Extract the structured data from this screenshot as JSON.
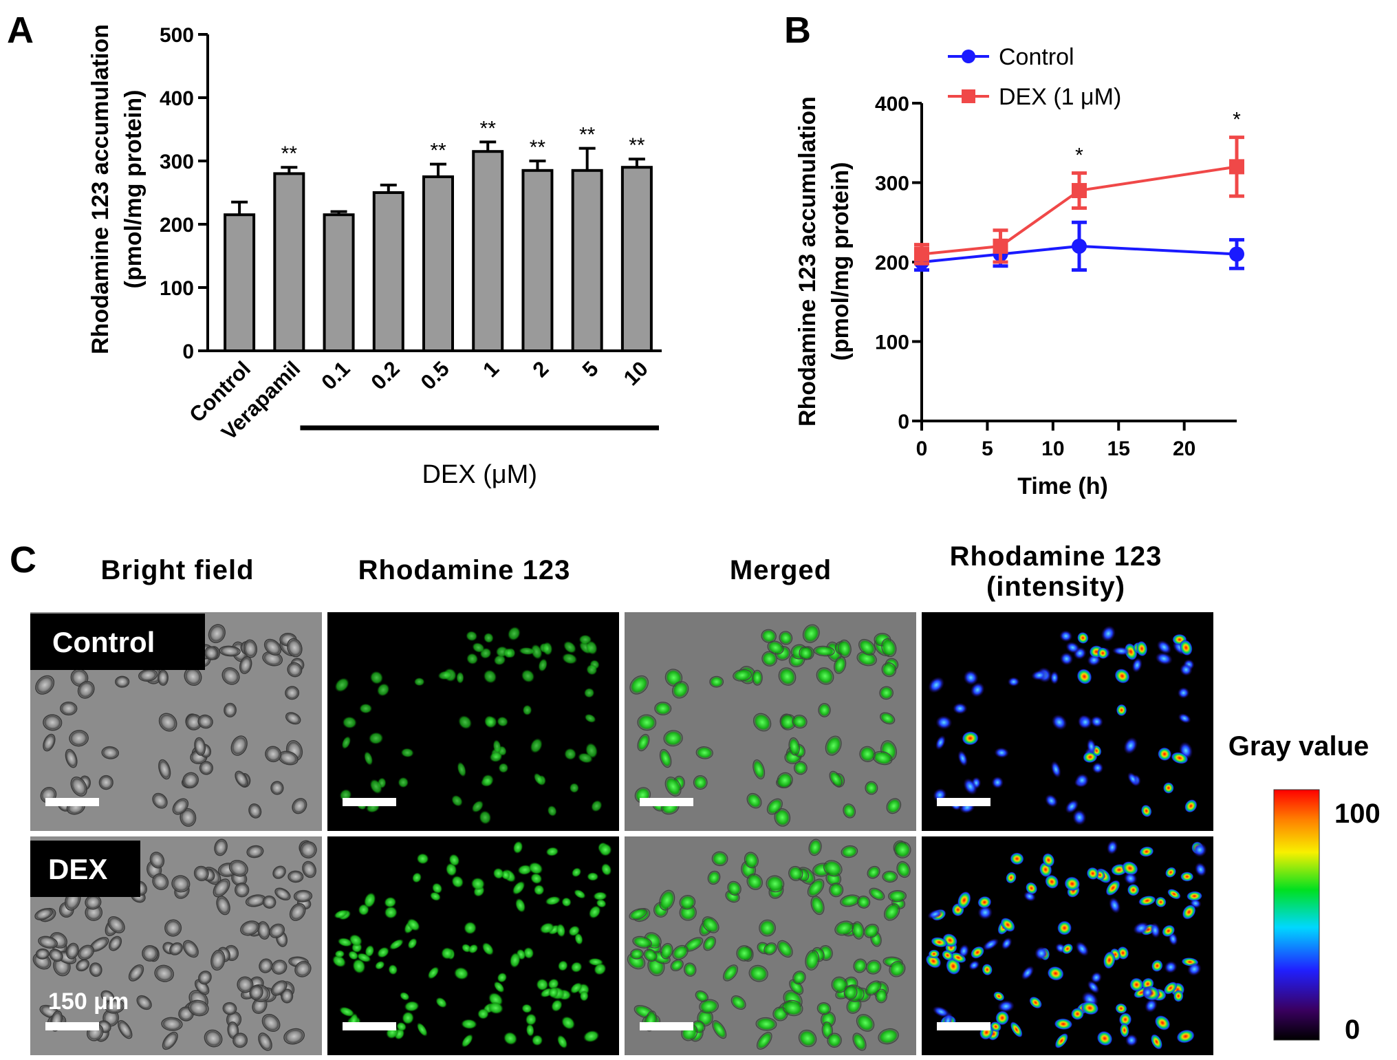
{
  "panels": {
    "a_letter": "A",
    "b_letter": "B",
    "c_letter": "C"
  },
  "chart_data": [
    {
      "type": "bar",
      "panel": "A",
      "ylabel_line1": "Rhodamine 123 accumulation",
      "ylabel_line2": "(pmol/mg protein)",
      "ylim": [
        0,
        500
      ],
      "yticks": [
        0,
        100,
        200,
        300,
        400,
        500
      ],
      "categories": [
        "Control",
        "Verapamil",
        "0.1",
        "0.2",
        "0.5",
        "1",
        "2",
        "5",
        "10"
      ],
      "values": [
        215,
        280,
        215,
        250,
        275,
        315,
        285,
        285,
        290
      ],
      "errors": [
        20,
        10,
        5,
        12,
        20,
        15,
        15,
        35,
        13
      ],
      "significance": [
        "",
        "**",
        "",
        "",
        "**",
        "**",
        "**",
        "**",
        "**"
      ],
      "group_label": "DEX (μM)",
      "bar_color": "#9a9a9a"
    },
    {
      "type": "line",
      "panel": "B",
      "ylabel_line1": "Rhodamine 123 accumulation",
      "ylabel_line2": "(pmol/mg protein)",
      "xlabel": "Time (h)",
      "ylim": [
        0,
        400
      ],
      "xlim": [
        0,
        24
      ],
      "yticks": [
        0,
        100,
        200,
        300,
        400
      ],
      "xticks": [
        0,
        5,
        10,
        15,
        20
      ],
      "legend_position": "top-left",
      "series": [
        {
          "name": "Control",
          "color": "#1a1aff",
          "marker": "circle",
          "x": [
            0,
            6,
            12,
            24
          ],
          "y": [
            200,
            210,
            220,
            210
          ],
          "err": [
            10,
            15,
            30,
            18
          ]
        },
        {
          "name": "DEX (1 μM)",
          "color": "#f04848",
          "marker": "square",
          "x": [
            0,
            6,
            12,
            24
          ],
          "y": [
            210,
            220,
            290,
            320
          ],
          "err": [
            12,
            20,
            22,
            37
          ]
        }
      ],
      "significance": [
        {
          "x": 12,
          "label": "*"
        },
        {
          "x": 24,
          "label": "*"
        }
      ]
    }
  ],
  "panel_c": {
    "column_titles": [
      "Bright field",
      "Rhodamine 123",
      "Merged",
      "Rhodamine 123",
      "(intensity)"
    ],
    "row_labels": [
      "Control",
      "DEX"
    ],
    "scale_bar_label": "150 μm",
    "colorbar_title": "Gray value",
    "colorbar_max": "100",
    "colorbar_min": "0"
  }
}
